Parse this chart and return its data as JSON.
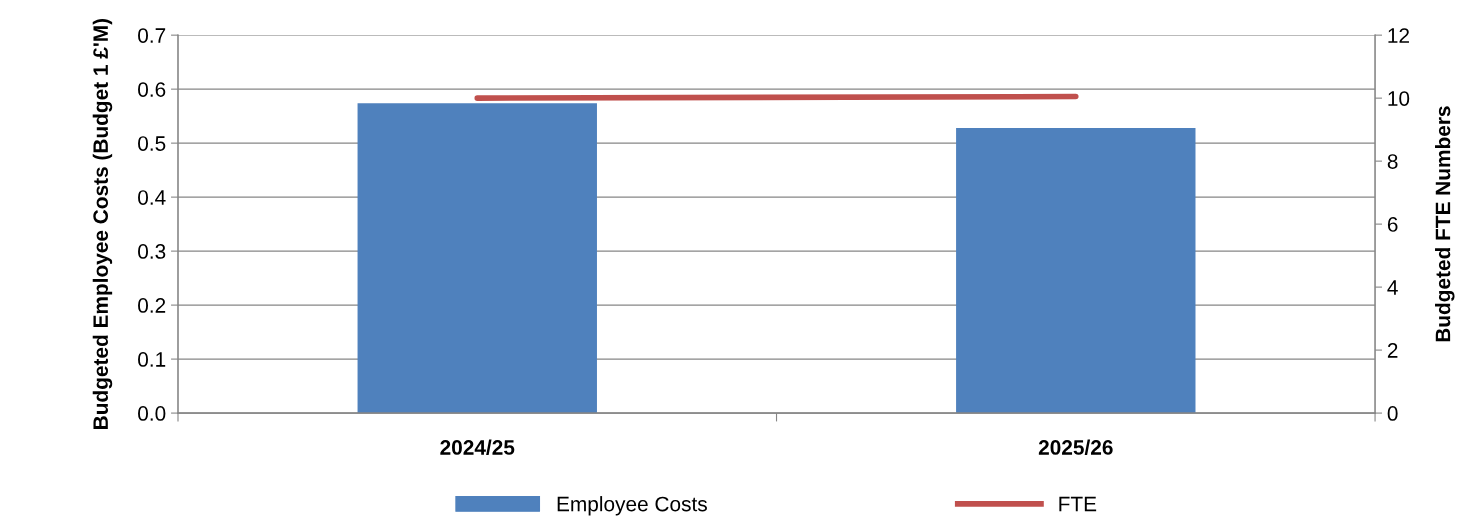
{
  "chart_data": {
    "type": "bar",
    "categories": [
      "2024/25",
      "2025/26"
    ],
    "series": [
      {
        "name": "Employee Costs",
        "color": "#4f81bd",
        "values": [
          0.574,
          0.528
        ]
      },
      {
        "name": "FTE",
        "color": "#c0504d",
        "values": [
          10.0,
          10.05
        ],
        "type": "line",
        "axis": "y2"
      }
    ],
    "ylabel": "Budgeted Employee Costs (Budget 1 £'M)",
    "y2label": "Budgeted FTE Numbers",
    "ylim": [
      0,
      0.7
    ],
    "yticks": [
      {
        "value": 0,
        "label": "0.0"
      },
      {
        "value": 0.1,
        "label": "0.1"
      },
      {
        "value": 0.2,
        "label": "0.2"
      },
      {
        "value": 0.3,
        "label": "0.3"
      },
      {
        "value": 0.4,
        "label": "0.4"
      },
      {
        "value": 0.5,
        "label": "0.5"
      },
      {
        "value": 0.6,
        "label": "0.6"
      },
      {
        "value": 0.7,
        "label": "0.7"
      }
    ],
    "y2lim": [
      0,
      12
    ],
    "y2ticks": [
      0,
      2,
      4,
      6,
      8,
      10,
      12
    ],
    "grid": "y",
    "legend": "bottom",
    "marker": "none",
    "line_style": "solid"
  }
}
